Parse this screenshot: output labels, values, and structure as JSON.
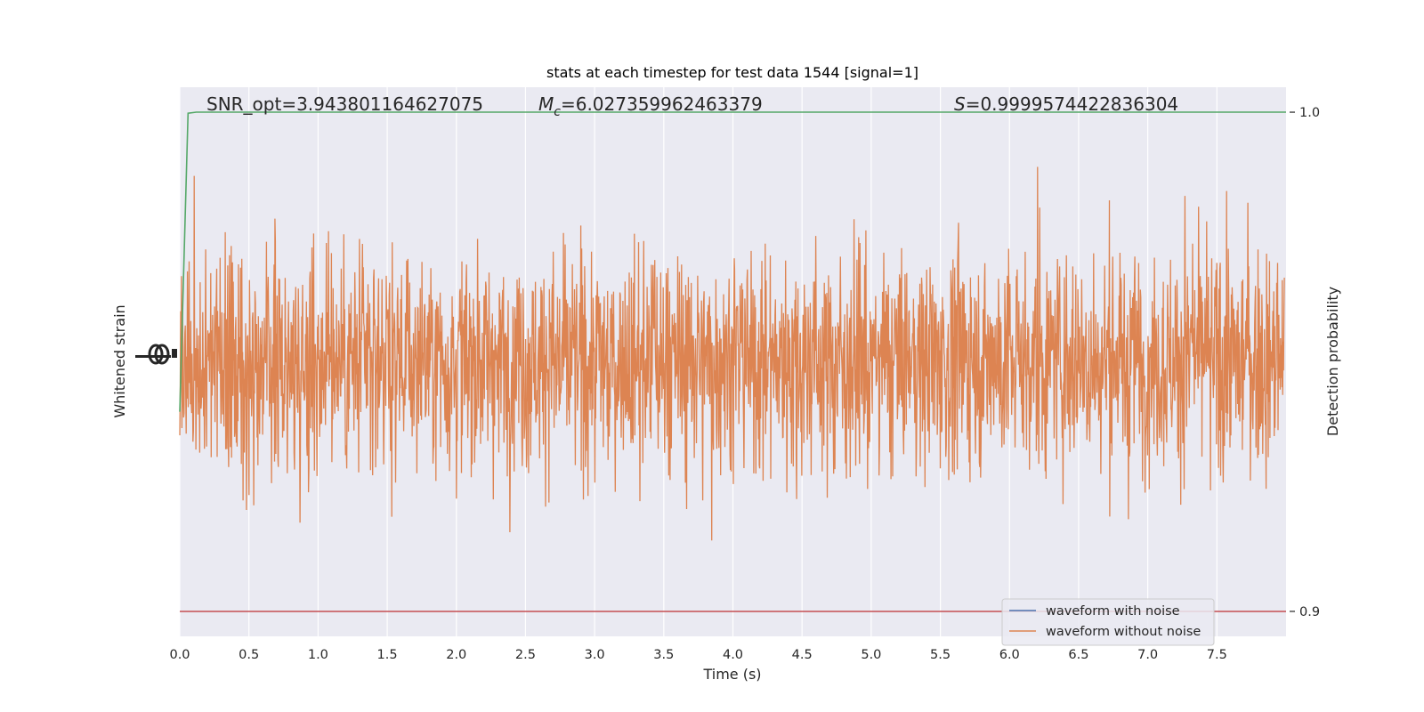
{
  "chart_data": {
    "type": "line",
    "title": "stats at each timestep for test data 1544 [signal=1]",
    "xlabel": "Time (s)",
    "ylabel_left": "Whitened strain",
    "ylabel_right": "Detection probability",
    "xlim": [
      0.0,
      8.0
    ],
    "x_ticks": [
      "0.0",
      "0.5",
      "1.0",
      "1.5",
      "2.0",
      "2.5",
      "3.0",
      "3.5",
      "4.0",
      "4.5",
      "5.0",
      "5.5",
      "6.0",
      "6.5",
      "7.0",
      "7.5"
    ],
    "y_right_lim": [
      0.895,
      1.005
    ],
    "y_right_ticks": [
      "1.0",
      "0.9"
    ],
    "grid": true,
    "annotations": {
      "snr": "SNR_opt=3.943801164627075",
      "mc_symbol": "M",
      "mc_sub": "c",
      "mc_value": "=6.027359962463379",
      "s_symbol": "S",
      "s_value": "=0.9999574422836304"
    },
    "series": [
      {
        "name": "waveform with noise",
        "color": "#4c72b0",
        "axis": "left"
      },
      {
        "name": "waveform without noise",
        "color": "#dd8452",
        "axis": "left",
        "amplitude_range": [
          -1.0,
          1.0
        ]
      },
      {
        "color": "#55a868",
        "axis": "right",
        "x": [
          0.0,
          0.06,
          0.12,
          8.0
        ],
        "y": [
          0.94,
          0.9998,
          1.0,
          1.0
        ]
      },
      {
        "color": "#c44e52",
        "axis": "right",
        "x": [
          0.0,
          8.0
        ],
        "y": [
          0.9,
          0.9
        ]
      }
    ],
    "legend_position": "bottom-right"
  },
  "style": {
    "plot_bg": "#eaeaf2",
    "grid": "#ffffff"
  }
}
